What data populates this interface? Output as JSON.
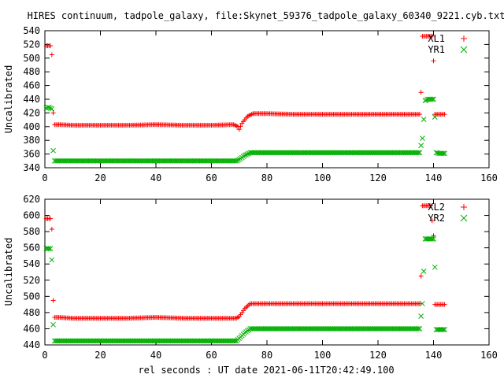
{
  "title": "HIRES continuum, tadpole_galaxy, file:Skynet_59376_tadpole_galaxy_60340_9221.cyb.txt",
  "xlabel": "rel seconds : UT date 2021-06-11T20:42:49.100",
  "colors": {
    "series1": "#ff0000",
    "series2": "#00b000"
  },
  "chart_data": [
    {
      "type": "scatter",
      "ylabel": "Uncalibrated",
      "xlim": [
        0,
        160
      ],
      "ylim": [
        340,
        540
      ],
      "xticks": [
        "0",
        "20",
        "40",
        "60",
        "80",
        "100",
        "120",
        "140",
        "160"
      ],
      "yticks": [
        "340",
        "360",
        "380",
        "400",
        "420",
        "440",
        "460",
        "480",
        "500",
        "520",
        "540"
      ],
      "legend_position": "top-right",
      "grid": false,
      "series": [
        {
          "name": "XL1",
          "marker": "plus",
          "points": [
            [
              0.5,
              518
            ],
            [
              1,
              518
            ],
            [
              1.5,
              518
            ],
            [
              2,
              518
            ],
            [
              2.5,
              505
            ],
            [
              3,
              420
            ],
            [
              3.5,
              403
            ],
            [
              5,
              403
            ],
            [
              10,
              402
            ],
            [
              20,
              402
            ],
            [
              30,
              402
            ],
            [
              40,
              403
            ],
            [
              50,
              402
            ],
            [
              60,
              402
            ],
            [
              68,
              403
            ],
            [
              69.5,
              400
            ],
            [
              70,
              396
            ],
            [
              71,
              405
            ],
            [
              73,
              415
            ],
            [
              75,
              419
            ],
            [
              80,
              419
            ],
            [
              90,
              418
            ],
            [
              100,
              418
            ],
            [
              110,
              418
            ],
            [
              120,
              418
            ],
            [
              130,
              418
            ],
            [
              135,
              418
            ],
            [
              135.5,
              450
            ],
            [
              136,
              532
            ],
            [
              137,
              532
            ],
            [
              138,
              532
            ],
            [
              139,
              532
            ],
            [
              139.5,
              532
            ],
            [
              140,
              496
            ],
            [
              140.5,
              418
            ],
            [
              141,
              418
            ],
            [
              142,
              418
            ],
            [
              143,
              418
            ],
            [
              144,
              418
            ]
          ]
        },
        {
          "name": "YR1",
          "marker": "x",
          "points": [
            [
              0.5,
              427
            ],
            [
              1,
              428
            ],
            [
              1.5,
              428
            ],
            [
              2,
              427
            ],
            [
              2.5,
              426
            ],
            [
              3,
              365
            ],
            [
              3.5,
              350
            ],
            [
              5,
              350
            ],
            [
              10,
              350
            ],
            [
              20,
              350
            ],
            [
              30,
              350
            ],
            [
              40,
              350
            ],
            [
              50,
              350
            ],
            [
              60,
              350
            ],
            [
              69,
              350
            ],
            [
              70,
              352
            ],
            [
              72,
              358
            ],
            [
              74,
              362
            ],
            [
              80,
              362
            ],
            [
              90,
              362
            ],
            [
              100,
              362
            ],
            [
              110,
              362
            ],
            [
              120,
              362
            ],
            [
              130,
              362
            ],
            [
              135,
              362
            ],
            [
              136,
              383
            ],
            [
              137,
              438
            ],
            [
              138,
              440
            ],
            [
              139,
              440
            ],
            [
              140,
              440
            ],
            [
              140.5,
              414
            ],
            [
              141,
              362
            ],
            [
              142,
              361
            ],
            [
              143,
              361
            ],
            [
              144,
              361
            ]
          ]
        }
      ]
    },
    {
      "type": "scatter",
      "ylabel": "Uncalibrated",
      "xlim": [
        0,
        160
      ],
      "ylim": [
        440,
        620
      ],
      "xticks": [
        "0",
        "20",
        "40",
        "60",
        "80",
        "100",
        "120",
        "140",
        "160"
      ],
      "yticks": [
        "440",
        "460",
        "480",
        "500",
        "520",
        "540",
        "560",
        "580",
        "600",
        "620"
      ],
      "legend_position": "top-right",
      "grid": false,
      "series": [
        {
          "name": "XL2",
          "marker": "plus",
          "points": [
            [
              0.5,
              596
            ],
            [
              1,
              596
            ],
            [
              1.5,
              596
            ],
            [
              2,
              596
            ],
            [
              2.5,
              583
            ],
            [
              3,
              495
            ],
            [
              3.5,
              474
            ],
            [
              5,
              474
            ],
            [
              10,
              473
            ],
            [
              20,
              473
            ],
            [
              30,
              473
            ],
            [
              40,
              474
            ],
            [
              50,
              473
            ],
            [
              60,
              473
            ],
            [
              69,
              473
            ],
            [
              70,
              475
            ],
            [
              72,
              485
            ],
            [
              74,
              491
            ],
            [
              80,
              491
            ],
            [
              90,
              491
            ],
            [
              100,
              491
            ],
            [
              110,
              491
            ],
            [
              120,
              491
            ],
            [
              130,
              491
            ],
            [
              135,
              491
            ],
            [
              135.5,
              525
            ],
            [
              136,
              612
            ],
            [
              137,
              612
            ],
            [
              138,
              612
            ],
            [
              139,
              612
            ],
            [
              140,
              575
            ],
            [
              140.5,
              490
            ],
            [
              141,
              490
            ],
            [
              142,
              490
            ],
            [
              143,
              490
            ],
            [
              144,
              490
            ]
          ]
        },
        {
          "name": "YR2",
          "marker": "x",
          "points": [
            [
              0.5,
              559
            ],
            [
              1,
              559
            ],
            [
              1.5,
              559
            ],
            [
              2,
              559
            ],
            [
              2.5,
              545
            ],
            [
              3,
              465
            ],
            [
              3.5,
              445
            ],
            [
              5,
              445
            ],
            [
              10,
              445
            ],
            [
              20,
              445
            ],
            [
              30,
              445
            ],
            [
              40,
              445
            ],
            [
              50,
              445
            ],
            [
              60,
              445
            ],
            [
              69,
              445
            ],
            [
              70,
              448
            ],
            [
              72,
              455
            ],
            [
              74,
              460
            ],
            [
              80,
              460
            ],
            [
              90,
              460
            ],
            [
              100,
              460
            ],
            [
              110,
              460
            ],
            [
              120,
              460
            ],
            [
              130,
              460
            ],
            [
              135,
              460
            ],
            [
              136,
              491
            ],
            [
              137,
              571
            ],
            [
              138,
              571
            ],
            [
              139,
              571
            ],
            [
              140,
              571
            ],
            [
              140.5,
              536
            ],
            [
              141,
              459
            ],
            [
              142,
              459
            ],
            [
              143,
              459
            ],
            [
              144,
              459
            ]
          ]
        }
      ]
    }
  ]
}
